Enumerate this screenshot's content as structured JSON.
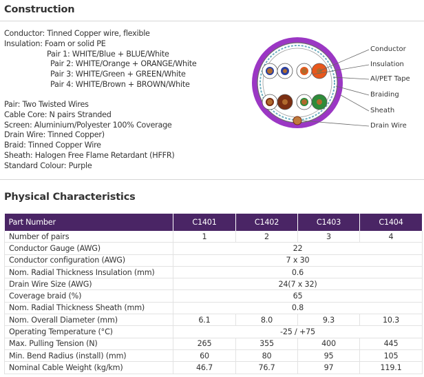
{
  "construction": {
    "title": "Construction",
    "specs": [
      {
        "label": "Conductor:",
        "value": "Tinned Copper wire, flexible"
      },
      {
        "label": "Insulation:",
        "value": "Foam or solid PE"
      }
    ],
    "pairs": [
      "Pair 1: WHITE/Blue + BLUE/White",
      "Pair 2: WHITE/Orange + ORANGE/White",
      "Pair 3: WHITE/Green + GREEN/White",
      "Pair 4: WHITE/Brown + BROWN/White"
    ],
    "specs2": [
      {
        "label": "Pair:",
        "value": "Two Twisted Wires"
      },
      {
        "label": "Cable Core:",
        "value": "N pairs Stranded"
      },
      {
        "label": "Screen:",
        "value": "Aluminium/Polyester 100% Coverage"
      },
      {
        "label": "Drain Wire:",
        "value": "Tinned Copper)"
      },
      {
        "label": "Braid:",
        "value": "Tinned Copper Wire"
      },
      {
        "label": "Sheath:",
        "value": "Halogen Free Flame Retardant (HFFR)"
      },
      {
        "label": "Standard Colour:",
        "value": "Purple"
      }
    ],
    "callouts": [
      "Conductor",
      "Insulation",
      "Al/PET Tape",
      "Braiding",
      "Sheath",
      "Drain Wire"
    ],
    "colors": {
      "sheath": "#9b37c4",
      "blue": "#2a3f9e",
      "orange": "#e8571c",
      "green": "#2e8b3a",
      "brown": "#7a2e12"
    }
  },
  "physical": {
    "title": "Physical Characteristics",
    "header": [
      "Part Number",
      "C1401",
      "C1402",
      "C1403",
      "C1404"
    ],
    "header_bg": "#4a2565",
    "rows": [
      {
        "label": "Number of pairs",
        "values": [
          "1",
          "2",
          "3",
          "4"
        ]
      },
      {
        "label": "Conductor Gauge (AWG)",
        "span": "22"
      },
      {
        "label": "Conductor configuration (AWG)",
        "span": "7 x 30"
      },
      {
        "label": "Nom. Radial Thickness Insulation (mm)",
        "span": "0.6"
      },
      {
        "label": "Drain Wire Size (AWG)",
        "span": "24(7 x 32)"
      },
      {
        "label": "Coverage braid (%)",
        "span": "65"
      },
      {
        "label": "Nom. Radial Thickness Sheath (mm)",
        "span": "0.8"
      },
      {
        "label": "Nom. Overall Diameter (mm)",
        "values": [
          "6.1",
          "8.0",
          "9.3",
          "10.3"
        ]
      },
      {
        "label": "Operating Temperature (°C)",
        "span": "-25 / +75"
      },
      {
        "label": "Max. Pulling Tension (N)",
        "values": [
          "265",
          "355",
          "400",
          "445"
        ]
      },
      {
        "label": "Min. Bend Radius (install) (mm)",
        "values": [
          "60",
          "80",
          "95",
          "105"
        ]
      },
      {
        "label": "Nominal Cable Weight (kg/km)",
        "values": [
          "46.7",
          "76.7",
          "97",
          "119.1"
        ]
      }
    ]
  }
}
